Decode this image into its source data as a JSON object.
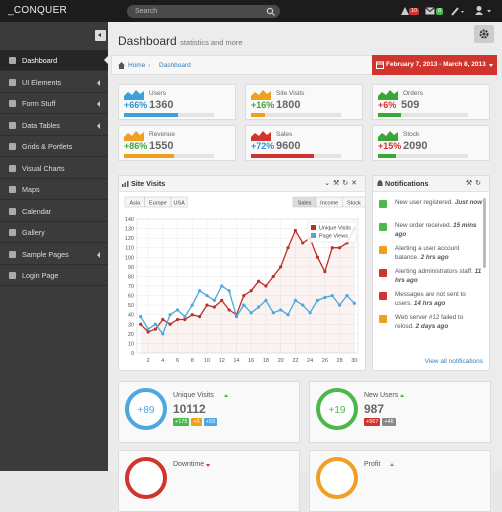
{
  "topbar": {
    "logo": "_CONQUER",
    "search": "Search",
    "badges": [
      "10",
      "8"
    ]
  },
  "sidebar": {
    "items": [
      "Dashboard",
      "UI Elements",
      "Form Stuff",
      "Data Tables",
      "Grids & Portlets",
      "Visual Charts",
      "Maps",
      "Calendar",
      "Gallery",
      "Sample Pages",
      "Login Page"
    ]
  },
  "header": {
    "title": "Dashboard",
    "subtitle": "statistics and more"
  },
  "breadcrumb": [
    "Home",
    "Dashboard"
  ],
  "date_range": "February 7, 2013 - March 8, 2013",
  "stats": [
    {
      "label": "Users",
      "change": "+66%",
      "value": "1360",
      "color": "#3f9fd8",
      "change_color": "#2f8fcf",
      "progress": 60
    },
    {
      "label": "Site Visits",
      "change": "+16%",
      "value": "1800",
      "color": "#f0a020",
      "change_color": "#3aa63a",
      "progress": 15
    },
    {
      "label": "Orders",
      "change": "+6%",
      "value": "509",
      "color": "#3aa63a",
      "change_color": "#d0342c",
      "progress": 25
    },
    {
      "label": "Revenue",
      "change": "+86%",
      "value": "1550",
      "color": "#f0a020",
      "change_color": "#3aa63a",
      "progress": 55
    },
    {
      "label": "Sales",
      "change": "+72%",
      "value": "9600",
      "color": "#d0342c",
      "change_color": "#2f8fcf",
      "progress": 70
    },
    {
      "label": "Stock",
      "change": "+15%",
      "value": "2090",
      "color": "#3aa63a",
      "change_color": "#d0342c",
      "progress": 20
    }
  ],
  "chart_data": {
    "type": "line",
    "title": "Site Visits",
    "regions": [
      "Asia",
      "Europe",
      "USA"
    ],
    "modes": [
      "Sales",
      "Income",
      "Stock"
    ],
    "x": [
      1,
      2,
      3,
      4,
      5,
      6,
      7,
      8,
      9,
      10,
      11,
      12,
      13,
      14,
      15,
      16,
      17,
      18,
      19,
      20,
      21,
      22,
      23,
      24,
      25,
      26,
      27,
      28,
      29,
      30
    ],
    "series": [
      {
        "name": "Unique Visits",
        "color": "#b8322a",
        "values": [
          30,
          22,
          25,
          35,
          30,
          35,
          35,
          40,
          38,
          50,
          48,
          55,
          45,
          40,
          60,
          65,
          75,
          70,
          80,
          90,
          110,
          128,
          115,
          120,
          100,
          85,
          110,
          110,
          115,
          130
        ]
      },
      {
        "name": "Page Views",
        "color": "#4da7e0",
        "values": [
          38,
          25,
          30,
          20,
          40,
          45,
          38,
          50,
          65,
          60,
          55,
          70,
          65,
          38,
          50,
          42,
          48,
          55,
          42,
          45,
          40,
          55,
          50,
          42,
          55,
          58,
          60,
          50,
          60,
          52
        ]
      }
    ],
    "xlim": [
      0.5,
      30.5
    ],
    "xticks": [
      2,
      4,
      6,
      8,
      10,
      12,
      14,
      16,
      18,
      20,
      22,
      24,
      26,
      28,
      30
    ],
    "ylim": [
      0,
      140
    ],
    "yticks": [
      0,
      10,
      20,
      30,
      40,
      50,
      60,
      70,
      80,
      90,
      100,
      110,
      120,
      130,
      140
    ],
    "grid": true,
    "legend": "upper right"
  },
  "notifications": {
    "title": "Notifications",
    "footer": "View all notifications",
    "items": [
      {
        "text": "New user registered.",
        "time": "Just now",
        "color": "#4cb84c"
      },
      {
        "text": "New order received.",
        "time": "15 mins ago",
        "color": "#4cb84c"
      },
      {
        "text": "Alerting a user account balance.",
        "time": "2 hrs ago",
        "color": "#f0a020"
      },
      {
        "text": "Alerting administrators staff.",
        "time": "11 hrs ago",
        "color": "#d0342c"
      },
      {
        "text": "Messages are not sent to users.",
        "time": "14 hrs ago",
        "color": "#d0342c"
      },
      {
        "text": "Web server #12 failed to relosd.",
        "time": "2 days ago",
        "color": "#f0a020"
      }
    ]
  },
  "cards": [
    {
      "label": "Unique Visits",
      "circle": "+89",
      "value": "10112",
      "color": "#4da7e0",
      "trend": "up",
      "badges": [
        {
          "text": "+175",
          "color": "#4cb84c"
        },
        {
          "text": "+5",
          "color": "#f0a020"
        },
        {
          "text": "+93",
          "color": "#4da7e0"
        }
      ]
    },
    {
      "label": "New Users",
      "circle": "+19",
      "value": "987",
      "color": "#4cb84c",
      "trend": "up",
      "badges": [
        {
          "text": "+567",
          "color": "#d0342c"
        },
        {
          "text": "+46",
          "color": "#888888"
        }
      ]
    },
    {
      "label": "Downtime",
      "color": "#d0342c",
      "trend": "down"
    },
    {
      "label": "Profit",
      "color": "#f0a020",
      "trend": "up"
    }
  ]
}
